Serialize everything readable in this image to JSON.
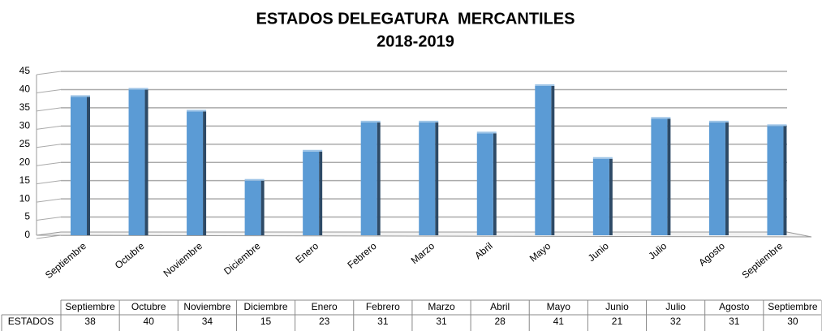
{
  "chart_data": {
    "type": "bar",
    "title": "ESTADOS DELEGATURA  MERCANTILES",
    "subtitle": "2018-2019",
    "categories": [
      "Septiembre",
      "Octubre",
      "Noviembre",
      "Diciembre",
      "Enero",
      "Febrero",
      "Marzo",
      "Abril",
      "Mayo",
      "Junio",
      "Julio",
      "Agosto",
      "Septiembre"
    ],
    "series": [
      {
        "name": "ESTADOS",
        "color": "#5b9bd5",
        "values": [
          38,
          40,
          34,
          15,
          23,
          31,
          31,
          28,
          41,
          21,
          32,
          31,
          30
        ]
      }
    ],
    "ylim": [
      0,
      45
    ],
    "yticks": [
      0,
      5,
      10,
      15,
      20,
      25,
      30,
      35,
      40,
      45
    ],
    "grid": true
  }
}
